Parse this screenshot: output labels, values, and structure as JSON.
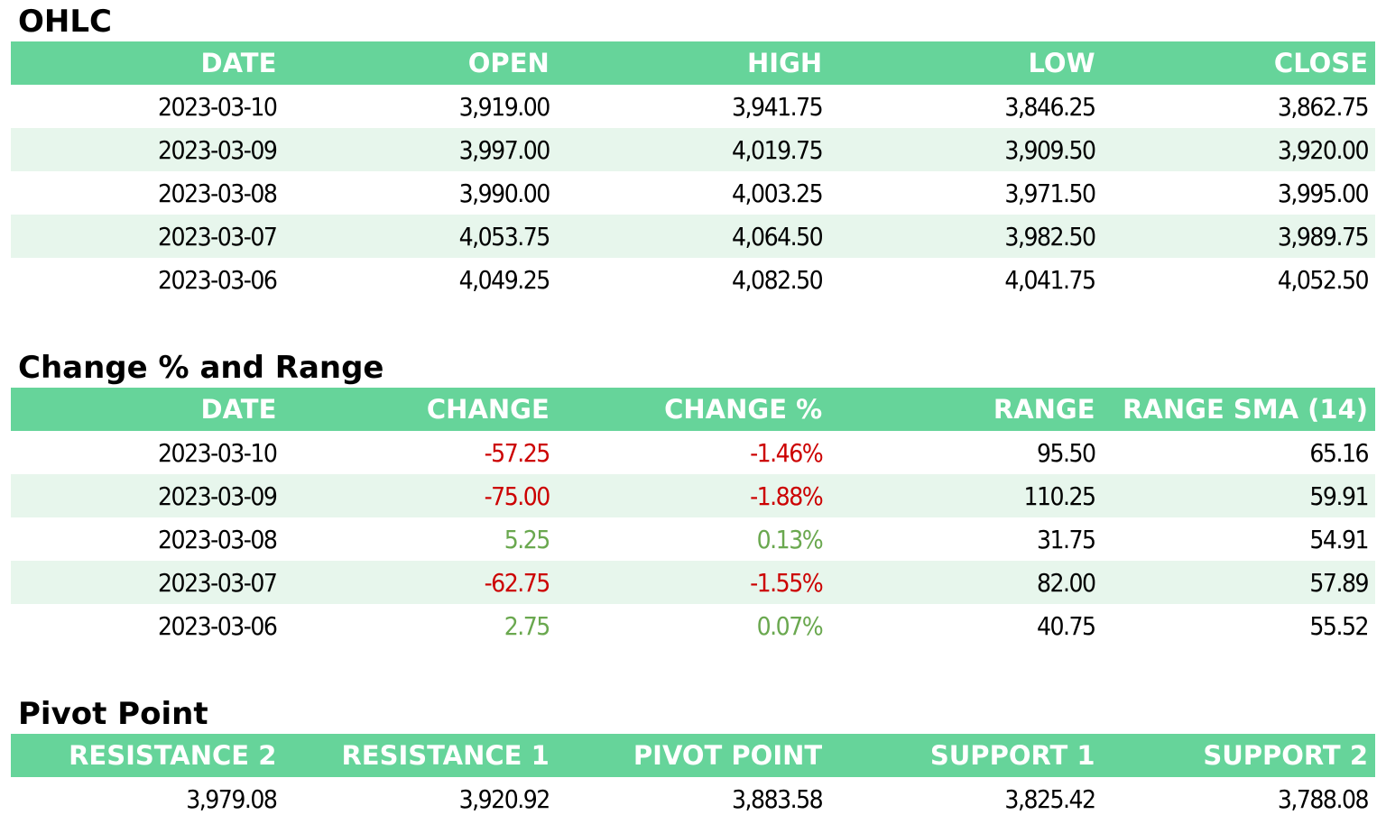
{
  "ohlc": {
    "title": "OHLC",
    "headers": [
      "DATE",
      "OPEN",
      "HIGH",
      "LOW",
      "CLOSE"
    ],
    "rows": [
      [
        "2023-03-10",
        "3,919.00",
        "3,941.75",
        "3,846.25",
        "3,862.75"
      ],
      [
        "2023-03-09",
        "3,997.00",
        "4,019.75",
        "3,909.50",
        "3,920.00"
      ],
      [
        "2023-03-08",
        "3,990.00",
        "4,003.25",
        "3,971.50",
        "3,995.00"
      ],
      [
        "2023-03-07",
        "4,053.75",
        "4,064.50",
        "3,982.50",
        "3,989.75"
      ],
      [
        "2023-03-06",
        "4,049.25",
        "4,082.50",
        "4,041.75",
        "4,052.50"
      ]
    ]
  },
  "change_range": {
    "title": "Change % and Range",
    "headers": [
      "DATE",
      "CHANGE",
      "CHANGE %",
      "RANGE",
      "RANGE SMA (14)"
    ],
    "rows": [
      [
        "2023-03-10",
        "-57.25",
        "-1.46%",
        "95.50",
        "65.16"
      ],
      [
        "2023-03-09",
        "-75.00",
        "-1.88%",
        "110.25",
        "59.91"
      ],
      [
        "2023-03-08",
        "5.25",
        "0.13%",
        "31.75",
        "54.91"
      ],
      [
        "2023-03-07",
        "-62.75",
        "-1.55%",
        "82.00",
        "57.89"
      ],
      [
        "2023-03-06",
        "2.75",
        "0.07%",
        "40.75",
        "55.52"
      ]
    ]
  },
  "pivot": {
    "title": "Pivot Point",
    "headers": [
      "RESISTANCE 2",
      "RESISTANCE 1",
      "PIVOT POINT",
      "SUPPORT 1",
      "SUPPORT 2"
    ],
    "rows": [
      [
        "3,979.08",
        "3,920.92",
        "3,883.58",
        "3,825.42",
        "3,788.08"
      ]
    ]
  },
  "colors": {
    "header_bg": "#66d49a",
    "header_text": "#ffffff",
    "row_alt_bg": "#e7f6ec",
    "negative": "#cc0000",
    "positive": "#6aa84f"
  }
}
